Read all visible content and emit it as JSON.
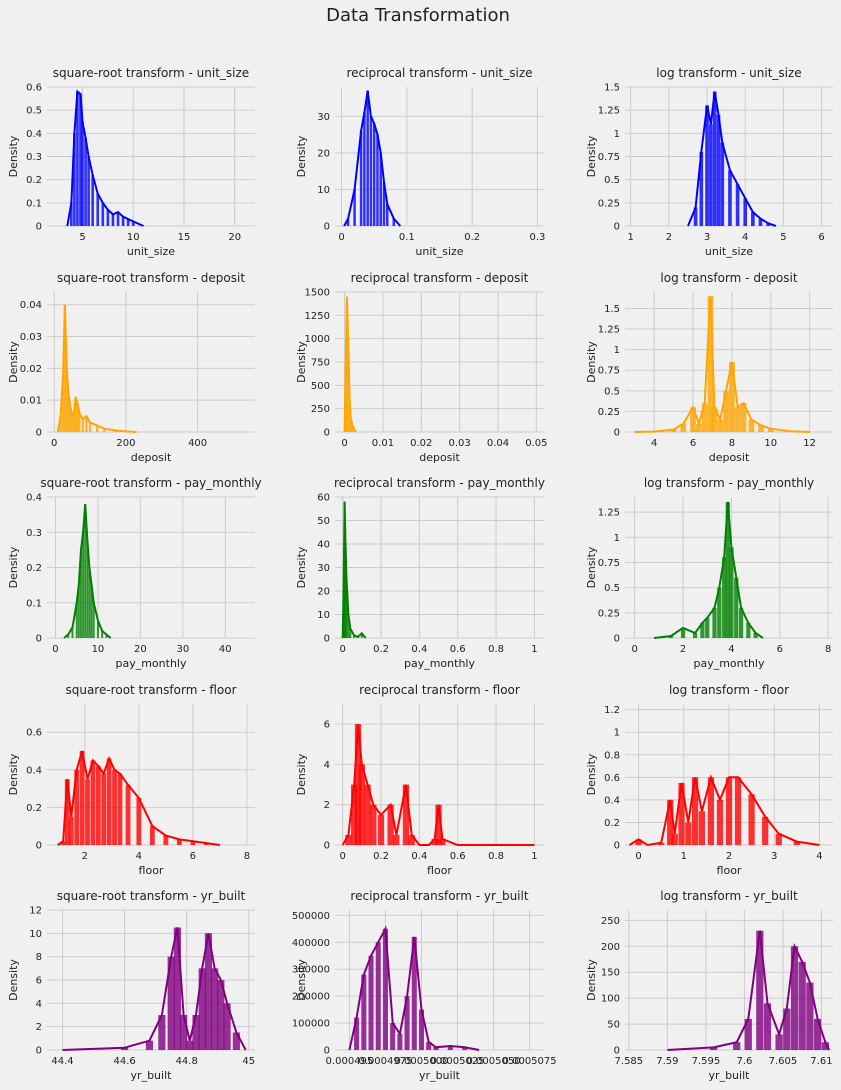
{
  "figure": {
    "title": "Data Transformation"
  },
  "chart_data": [
    {
      "type": "area",
      "title": "square-root transform - unit_size",
      "xlabel": "unit_size",
      "ylabel": "Density",
      "color": "#0000ff",
      "xlim": [
        1.5,
        22
      ],
      "ylim": [
        0,
        0.6
      ],
      "xticks": [
        5,
        10,
        15,
        20
      ],
      "yticks": [
        0.0,
        0.1,
        0.2,
        0.3,
        0.4,
        0.5,
        0.6
      ],
      "x": [
        3.5,
        3.9,
        4.2,
        4.5,
        4.8,
        5.0,
        5.3,
        5.6,
        6.0,
        6.5,
        7.0,
        7.5,
        8.0,
        8.5,
        9.0,
        9.5,
        10.0,
        11.0
      ],
      "y": [
        0.0,
        0.1,
        0.4,
        0.58,
        0.57,
        0.45,
        0.38,
        0.3,
        0.22,
        0.14,
        0.1,
        0.07,
        0.05,
        0.06,
        0.04,
        0.03,
        0.02,
        0.0
      ]
    },
    {
      "type": "area",
      "title": "reciprocal transform - unit_size",
      "xlabel": "unit_size",
      "ylabel": "Density",
      "color": "#0000ff",
      "xlim": [
        -0.01,
        0.31
      ],
      "ylim": [
        0,
        38
      ],
      "xticks": [
        0.0,
        0.1,
        0.2,
        0.3
      ],
      "yticks": [
        0,
        10,
        20,
        30
      ],
      "x": [
        0.004,
        0.01,
        0.02,
        0.03,
        0.035,
        0.04,
        0.045,
        0.05,
        0.055,
        0.06,
        0.065,
        0.07,
        0.08,
        0.09
      ],
      "y": [
        0,
        2,
        10,
        26,
        31,
        37,
        30,
        28,
        25,
        20,
        12,
        6,
        2,
        0
      ]
    },
    {
      "type": "area",
      "title": "log transform - unit_size",
      "xlabel": "unit_size",
      "ylabel": "Density",
      "color": "#0000ff",
      "xlim": [
        0.85,
        6.3
      ],
      "ylim": [
        0,
        1.5
      ],
      "xticks": [
        1,
        2,
        3,
        4,
        5,
        6
      ],
      "yticks": [
        0.0,
        0.25,
        0.5,
        0.75,
        1.0,
        1.25,
        1.5
      ],
      "x": [
        2.5,
        2.7,
        2.85,
        3.0,
        3.1,
        3.2,
        3.3,
        3.4,
        3.6,
        3.8,
        4.0,
        4.2,
        4.4,
        4.6,
        4.8
      ],
      "y": [
        0.0,
        0.2,
        0.8,
        1.3,
        1.1,
        1.45,
        1.2,
        0.9,
        0.6,
        0.45,
        0.3,
        0.15,
        0.08,
        0.03,
        0.0
      ]
    },
    {
      "type": "area",
      "title": "square-root transform - deposit",
      "xlabel": "deposit",
      "ylabel": "Density",
      "color": "#ffa500",
      "xlim": [
        -20,
        560
      ],
      "ylim": [
        0,
        0.044
      ],
      "xticks": [
        0,
        200,
        400
      ],
      "yticks": [
        0.0,
        0.01,
        0.02,
        0.03,
        0.04
      ],
      "x": [
        10,
        18,
        25,
        30,
        35,
        40,
        45,
        50,
        55,
        60,
        65,
        70,
        80,
        90,
        100,
        120,
        140,
        170,
        200,
        230
      ],
      "y": [
        0.0,
        0.005,
        0.018,
        0.04,
        0.02,
        0.012,
        0.008,
        0.005,
        0.006,
        0.011,
        0.009,
        0.006,
        0.004,
        0.005,
        0.003,
        0.002,
        0.001,
        0.0005,
        0.0002,
        0.0
      ]
    },
    {
      "type": "area",
      "title": "reciprocal transform - deposit",
      "xlabel": "deposit",
      "ylabel": "Density",
      "color": "#ffa500",
      "xlim": [
        -0.0025,
        0.052
      ],
      "ylim": [
        0,
        1500
      ],
      "xticks": [
        0.0,
        0.01,
        0.02,
        0.03,
        0.04,
        0.05
      ],
      "yticks": [
        0,
        250,
        500,
        750,
        1000,
        1250,
        1500
      ],
      "x": [
        0.0,
        0.0003,
        0.0006,
        0.001,
        0.0013,
        0.0016,
        0.002,
        0.0025,
        0.003
      ],
      "y": [
        0,
        700,
        1450,
        900,
        350,
        150,
        80,
        30,
        0
      ]
    },
    {
      "type": "area",
      "title": "log transform - deposit",
      "xlabel": "deposit",
      "ylabel": "Density",
      "color": "#ffa500",
      "xlim": [
        2.5,
        13.2
      ],
      "ylim": [
        0,
        1.7
      ],
      "xticks": [
        4,
        6,
        8,
        10,
        12
      ],
      "yticks": [
        0.0,
        0.25,
        0.5,
        0.75,
        1.0,
        1.25,
        1.5
      ],
      "x": [
        3.0,
        4.0,
        5.0,
        5.5,
        6.0,
        6.3,
        6.6,
        6.9,
        7.1,
        7.4,
        7.7,
        8.0,
        8.3,
        8.6,
        9.0,
        9.5,
        10.0,
        11.0,
        12.0
      ],
      "y": [
        0.0,
        0.005,
        0.03,
        0.1,
        0.3,
        0.1,
        0.35,
        1.65,
        0.3,
        0.15,
        0.5,
        0.85,
        0.3,
        0.35,
        0.15,
        0.08,
        0.04,
        0.01,
        0.0
      ]
    },
    {
      "type": "area",
      "title": "square-root transform - pay_monthly",
      "xlabel": "pay_monthly",
      "ylabel": "Density",
      "color": "#008000",
      "xlim": [
        -2,
        47
      ],
      "ylim": [
        0,
        0.4
      ],
      "xticks": [
        0,
        10,
        20,
        30,
        40
      ],
      "yticks": [
        0.0,
        0.1,
        0.2,
        0.3,
        0.4
      ],
      "x": [
        2.0,
        3.0,
        4.0,
        5.0,
        5.5,
        6.0,
        6.5,
        7.0,
        7.5,
        8.0,
        8.5,
        9.0,
        10.0,
        11.0,
        12.0,
        13.0
      ],
      "y": [
        0.0,
        0.01,
        0.03,
        0.1,
        0.15,
        0.25,
        0.3,
        0.38,
        0.28,
        0.2,
        0.15,
        0.1,
        0.05,
        0.02,
        0.01,
        0.0
      ]
    },
    {
      "type": "area",
      "title": "reciprocal transform - pay_monthly",
      "xlabel": "pay_monthly",
      "ylabel": "Density",
      "color": "#008000",
      "xlim": [
        -0.04,
        1.05
      ],
      "ylim": [
        0,
        60
      ],
      "xticks": [
        0.0,
        0.2,
        0.4,
        0.6,
        0.8,
        1.0
      ],
      "yticks": [
        0,
        10,
        20,
        30,
        40,
        50,
        60
      ],
      "x": [
        0.0,
        0.005,
        0.01,
        0.015,
        0.02,
        0.03,
        0.04,
        0.06,
        0.08,
        0.1,
        0.12
      ],
      "y": [
        0,
        20,
        58,
        40,
        25,
        10,
        4,
        1,
        0.5,
        2,
        0
      ]
    },
    {
      "type": "area",
      "title": "log transform - pay_monthly",
      "xlabel": "pay_monthly",
      "ylabel": "Density",
      "color": "#008000",
      "xlim": [
        -0.4,
        8.2
      ],
      "ylim": [
        0,
        1.4
      ],
      "xticks": [
        0,
        2,
        4,
        6,
        8
      ],
      "yticks": [
        0.0,
        0.25,
        0.5,
        0.75,
        1.0,
        1.25
      ],
      "x": [
        0.8,
        1.5,
        2.0,
        2.5,
        2.8,
        3.0,
        3.3,
        3.5,
        3.7,
        3.85,
        4.0,
        4.2,
        4.4,
        4.7,
        5.0,
        5.3
      ],
      "y": [
        0.0,
        0.02,
        0.1,
        0.05,
        0.15,
        0.2,
        0.3,
        0.5,
        0.8,
        1.35,
        0.9,
        0.6,
        0.3,
        0.15,
        0.05,
        0.0
      ]
    },
    {
      "type": "area",
      "title": "square-root transform - floor",
      "xlabel": "floor",
      "ylabel": "Density",
      "color": "#ff0000",
      "xlim": [
        0.6,
        8.3
      ],
      "ylim": [
        0,
        0.75
      ],
      "xticks": [
        2,
        4,
        6,
        8
      ],
      "yticks": [
        0.0,
        0.2,
        0.4,
        0.6
      ],
      "x": [
        1.0,
        1.2,
        1.35,
        1.5,
        1.7,
        1.9,
        2.1,
        2.3,
        2.5,
        2.7,
        2.9,
        3.1,
        3.3,
        3.6,
        4.0,
        4.5,
        5.0,
        5.5,
        6.0,
        6.5,
        7.0
      ],
      "y": [
        0.0,
        0.02,
        0.35,
        0.15,
        0.4,
        0.5,
        0.35,
        0.45,
        0.42,
        0.38,
        0.46,
        0.4,
        0.38,
        0.32,
        0.25,
        0.1,
        0.05,
        0.03,
        0.02,
        0.01,
        0.0
      ]
    },
    {
      "type": "area",
      "title": "reciprocal transform - floor",
      "xlabel": "floor",
      "ylabel": "Density",
      "color": "#ff0000",
      "xlim": [
        -0.04,
        1.05
      ],
      "ylim": [
        0,
        7
      ],
      "xticks": [
        0.0,
        0.2,
        0.4,
        0.6,
        0.8,
        1.0
      ],
      "yticks": [
        0,
        2,
        4,
        6
      ],
      "x": [
        0.0,
        0.03,
        0.06,
        0.08,
        0.1,
        0.13,
        0.16,
        0.2,
        0.25,
        0.28,
        0.33,
        0.36,
        0.4,
        0.45,
        0.48,
        0.5,
        0.52,
        0.6,
        1.0
      ],
      "y": [
        0.0,
        0.5,
        3.0,
        6.0,
        4.0,
        3.0,
        2.0,
        1.5,
        2.0,
        0.5,
        3.0,
        0.5,
        0.0,
        0.0,
        0.3,
        2.0,
        0.3,
        0.0,
        0.0
      ]
    },
    {
      "type": "area",
      "title": "log transform - floor",
      "xlabel": "floor",
      "ylabel": "Density",
      "color": "#ff0000",
      "xlim": [
        -0.3,
        4.3
      ],
      "ylim": [
        0,
        1.25
      ],
      "xticks": [
        0,
        1,
        2,
        3,
        4
      ],
      "yticks": [
        0.0,
        0.2,
        0.4,
        0.6,
        0.8,
        1.0,
        1.2
      ],
      "x": [
        -0.2,
        0.0,
        0.2,
        0.5,
        0.7,
        0.8,
        0.95,
        1.1,
        1.25,
        1.4,
        1.6,
        1.8,
        2.0,
        2.2,
        2.5,
        2.8,
        3.1,
        3.5,
        4.0
      ],
      "y": [
        0.0,
        0.05,
        0.0,
        0.02,
        0.4,
        0.1,
        0.55,
        0.2,
        0.6,
        0.3,
        0.6,
        0.4,
        0.6,
        0.6,
        0.45,
        0.25,
        0.1,
        0.03,
        0.0
      ]
    },
    {
      "type": "area",
      "title": "square-root transform - yr_built",
      "xlabel": "yr_built",
      "ylabel": "Density",
      "color": "#800080",
      "xlim": [
        44.35,
        45.02
      ],
      "ylim": [
        0,
        12
      ],
      "xticks": [
        44.4,
        44.6,
        44.8,
        45.0
      ],
      "yticks": [
        0,
        2,
        4,
        6,
        8,
        10,
        12
      ],
      "x": [
        44.4,
        44.6,
        44.68,
        44.72,
        44.75,
        44.77,
        44.79,
        44.81,
        44.83,
        44.85,
        44.87,
        44.89,
        44.91,
        44.93,
        44.96,
        44.99
      ],
      "y": [
        0.0,
        0.2,
        0.8,
        3.0,
        8.0,
        10.5,
        3.0,
        0.8,
        3.0,
        7.0,
        10.0,
        7.0,
        6.0,
        4.0,
        1.5,
        0.0
      ]
    },
    {
      "type": "area",
      "title": "reciprocal transform - yr_built",
      "xlabel": "yr_built",
      "ylabel": "Density",
      "color": "#800080",
      "xlim": [
        0.000494,
        0.0005085
      ],
      "ylim": [
        0,
        520000
      ],
      "xticks": [
        0.000495,
        0.0004975,
        0.0005,
        0.0005025,
        0.000505,
        0.0005075
      ],
      "xticklabels": [
        "0.000495",
        "0.0004975",
        "0.0005000",
        "0.0005025",
        "0.0005050",
        "0.0005075"
      ],
      "yticks": [
        0,
        100000,
        200000,
        300000,
        400000,
        500000
      ],
      "x": [
        0.000495,
        0.0004955,
        0.000496,
        0.0004965,
        0.000497,
        0.0004975,
        0.000498,
        0.0004985,
        0.000499,
        0.0004995,
        0.0005,
        0.0005005,
        0.000501,
        0.000502,
        0.000503,
        0.000504
      ],
      "y": [
        0,
        120000,
        280000,
        350000,
        400000,
        450000,
        100000,
        60000,
        200000,
        420000,
        150000,
        30000,
        10000,
        15000,
        10000,
        0
      ]
    },
    {
      "type": "area",
      "title": "log transform - yr_built",
      "xlabel": "yr_built",
      "ylabel": "Density",
      "color": "#800080",
      "xlim": [
        7.5845,
        7.6115
      ],
      "ylim": [
        0,
        270
      ],
      "xticks": [
        7.585,
        7.59,
        7.595,
        7.6,
        7.605,
        7.61
      ],
      "yticks": [
        0,
        50,
        100,
        150,
        200,
        250
      ],
      "x": [
        7.59,
        7.596,
        7.599,
        7.6005,
        7.602,
        7.603,
        7.6045,
        7.6055,
        7.6065,
        7.6075,
        7.6085,
        7.6095,
        7.6105,
        7.611
      ],
      "y": [
        0,
        5,
        15,
        60,
        230,
        90,
        30,
        80,
        200,
        170,
        130,
        60,
        15,
        0
      ]
    }
  ]
}
